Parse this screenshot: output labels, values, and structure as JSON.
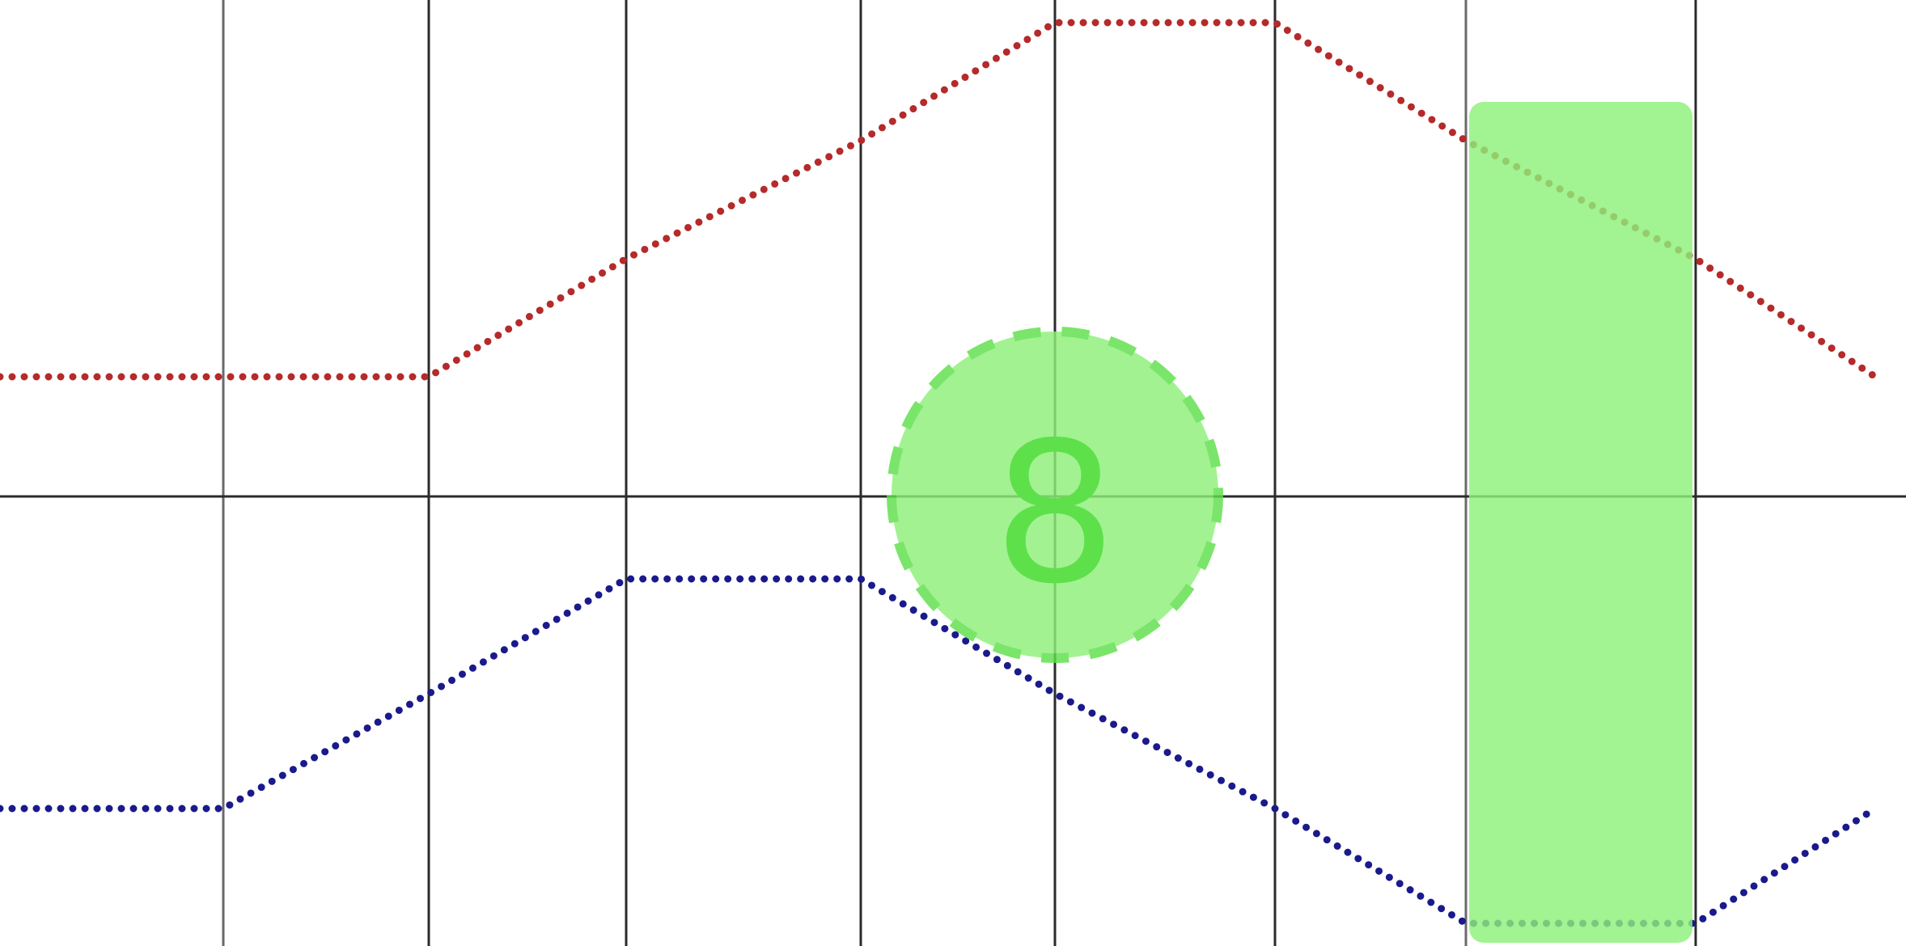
{
  "chart_data": {
    "type": "line",
    "x": [
      0,
      1,
      2,
      3,
      4,
      5,
      6,
      7,
      8,
      9
    ],
    "series": [
      {
        "values": [
          1,
          1,
          1,
          2,
          3,
          4,
          4,
          3,
          2,
          1
        ],
        "color": "#b52a2a"
      },
      {
        "values": [
          1,
          1,
          2,
          3,
          3,
          2,
          1,
          0,
          0,
          1
        ],
        "color": "#1a1a8c"
      }
    ],
    "ylim": [
      0,
      4
    ],
    "grid": true,
    "highlight": {
      "kind": "column",
      "x_range": [
        8,
        9
      ],
      "color": "#8ef07a"
    },
    "marker": {
      "label": "8",
      "x": 5,
      "color": "#5ee04a"
    }
  }
}
